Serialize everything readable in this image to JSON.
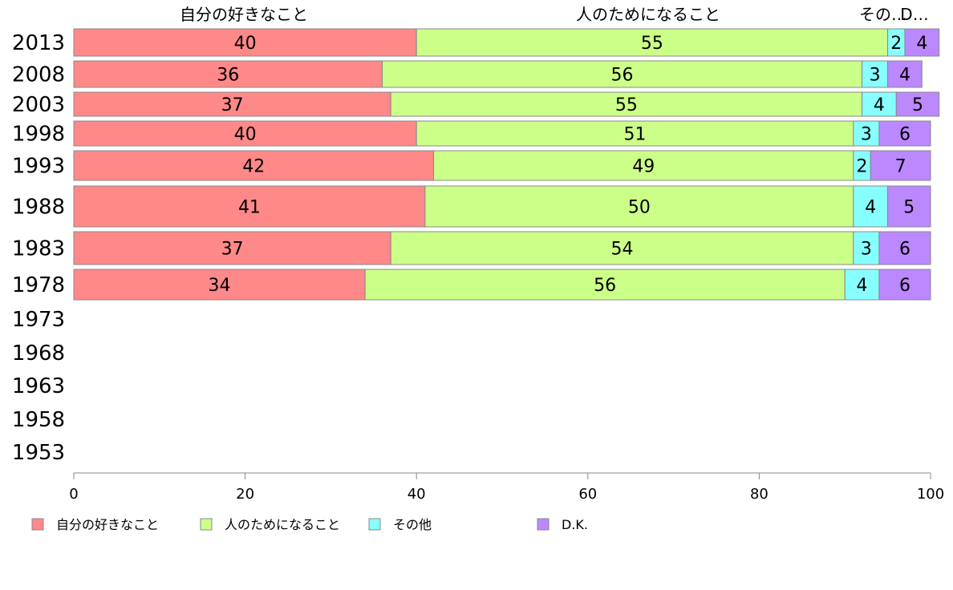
{
  "chart_data": {
    "type": "bar",
    "orientation": "horizontal",
    "stacked": true,
    "categories": [
      "2013",
      "2008",
      "2003",
      "1998",
      "1993",
      "1988",
      "1983",
      "1978",
      "1973",
      "1968",
      "1963",
      "1958",
      "1953"
    ],
    "series": [
      {
        "name": "自分の好きなこと",
        "color": "#ff8888",
        "values": [
          40,
          36,
          37,
          40,
          42,
          41,
          37,
          34,
          null,
          null,
          null,
          null,
          null
        ]
      },
      {
        "name": "人のためになること",
        "color": "#ccff88",
        "values": [
          55,
          56,
          55,
          51,
          49,
          50,
          54,
          56,
          null,
          null,
          null,
          null,
          null
        ]
      },
      {
        "name": "その他",
        "color": "#88ffff",
        "values": [
          2,
          3,
          4,
          3,
          2,
          4,
          3,
          4,
          null,
          null,
          null,
          null,
          null
        ]
      },
      {
        "name": "D.K.",
        "color": "#bb88ff",
        "values": [
          4,
          4,
          5,
          6,
          7,
          5,
          6,
          6,
          null,
          null,
          null,
          null,
          null
        ]
      }
    ],
    "column_headers": [
      "自分の好きなこと",
      "人のためになること",
      "その…",
      "D…"
    ],
    "xlim": [
      0,
      100
    ],
    "xticks": [
      "0",
      "20",
      "40",
      "60",
      "80",
      "100"
    ],
    "grid": false,
    "legend": "bottom"
  }
}
